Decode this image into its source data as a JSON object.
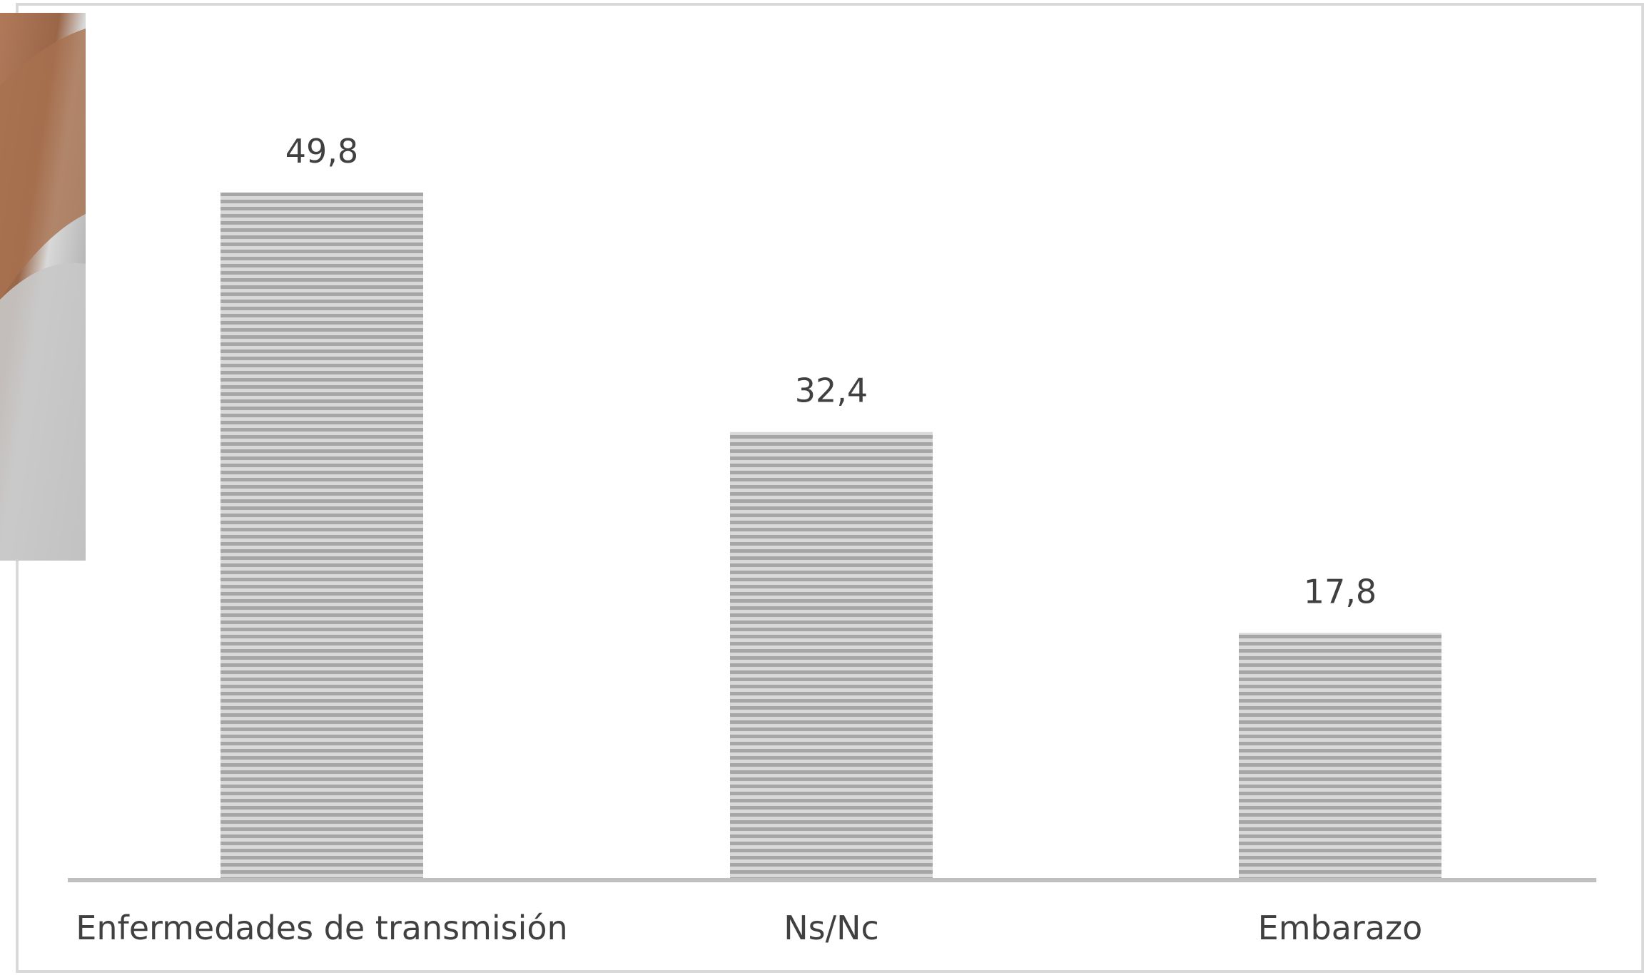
{
  "chart_data": {
    "type": "bar",
    "title": "",
    "xlabel": "",
    "ylabel": "",
    "categories": [
      "Enfermedades de transmisión",
      "Ns/Nc",
      "Embarazo"
    ],
    "values": [
      49.8,
      32.4,
      17.8
    ],
    "value_labels": [
      "49,8",
      "32,4",
      "17,8"
    ],
    "ylim": [
      0,
      55
    ],
    "grid": false,
    "legend": "none",
    "bar_pattern": "horizontal-stripes",
    "bar_color": "#a6a6a6",
    "bar_stripe_color": "#d9d9d9",
    "axis_color": "#bfbfbf",
    "text_color": "#404040"
  },
  "decor": {
    "photo_icon": "hand-photo"
  }
}
